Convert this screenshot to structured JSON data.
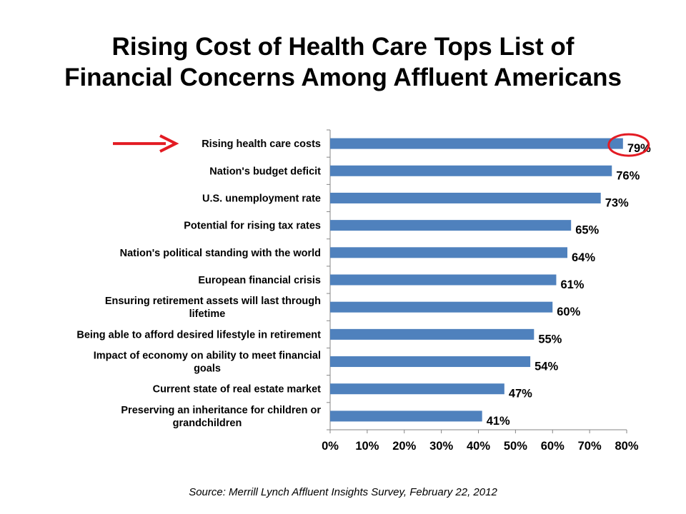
{
  "title_lines": [
    "Rising Cost of Health Care Tops List of",
    "Financial Concerns Among Affluent Americans"
  ],
  "chart_data": {
    "type": "bar",
    "orientation": "horizontal",
    "title": "Rising Cost of Health Care Tops List of Financial Concerns Among Affluent Americans",
    "categories": [
      "Rising health care costs",
      "Nation's budget deficit",
      "U.S. unemployment rate",
      "Potential for rising tax rates",
      "Nation's political standing with the world",
      "European financial crisis",
      "Ensuring retirement assets will last through lifetime",
      "Being able to afford desired lifestyle in retirement",
      "Impact of economy on ability to meet financial goals",
      "Current state of real estate market",
      "Preserving an inheritance for children or grandchildren"
    ],
    "category_lines": [
      [
        "Rising health care costs"
      ],
      [
        "Nation's budget deficit"
      ],
      [
        "U.S. unemployment rate"
      ],
      [
        "Potential for rising tax rates"
      ],
      [
        "Nation's political standing with the world"
      ],
      [
        "European financial crisis"
      ],
      [
        "Ensuring retirement assets will last through",
        "lifetime"
      ],
      [
        "Being able to afford desired lifestyle in retirement"
      ],
      [
        "Impact of economy on ability to meet financial",
        "goals"
      ],
      [
        "Current state of real estate market"
      ],
      [
        "Preserving an inheritance for children or",
        "grandchildren"
      ]
    ],
    "values": [
      79,
      76,
      73,
      65,
      64,
      61,
      60,
      55,
      54,
      47,
      41
    ],
    "value_labels": [
      "79%",
      "76%",
      "73%",
      "65%",
      "64%",
      "61%",
      "60%",
      "55%",
      "54%",
      "47%",
      "41%"
    ],
    "xlim": [
      0,
      80
    ],
    "x_ticks": [
      0,
      10,
      20,
      30,
      40,
      50,
      60,
      70,
      80
    ],
    "x_tick_labels": [
      "0%",
      "10%",
      "20%",
      "30%",
      "40%",
      "50%",
      "60%",
      "70%",
      "80%"
    ],
    "xlabel": "",
    "ylabel": "",
    "grid": false,
    "highlighted_category": "Rising health care costs",
    "colors": {
      "bar": "#4f81bd",
      "axis": "#868686",
      "highlight": "#e31b23"
    }
  },
  "source": "Source: Merrill Lynch Affluent Insights Survey, February 22, 2012"
}
